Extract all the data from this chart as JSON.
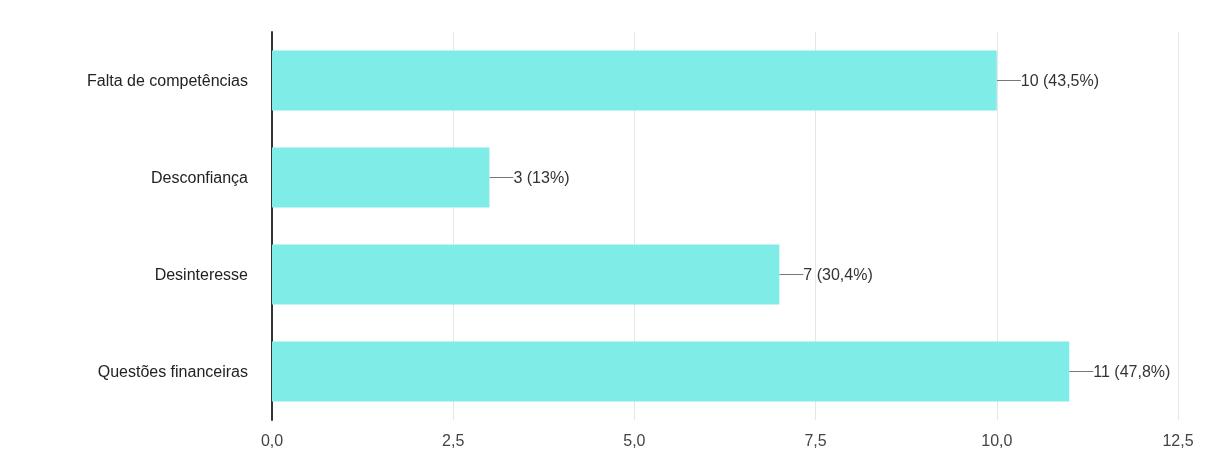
{
  "chart_data": {
    "type": "bar",
    "orientation": "horizontal",
    "categories": [
      "Falta de competências",
      "Desconfiança",
      "Desinteresse",
      "Questões financeiras"
    ],
    "values": [
      10,
      3,
      7,
      11
    ],
    "value_labels": [
      "10 (43,5%)",
      "3 (13%)",
      "7 (30,4%)",
      "11 (47,8%)"
    ],
    "color": "#80ece8",
    "xlim": [
      0,
      12.5
    ],
    "xticks": [
      {
        "value": 0,
        "label": "0,0"
      },
      {
        "value": 2.5,
        "label": "2,5"
      },
      {
        "value": 5,
        "label": "5,0"
      },
      {
        "value": 7.5,
        "label": "7,5"
      },
      {
        "value": 10,
        "label": "10,0"
      },
      {
        "value": 12.5,
        "label": "12,5"
      }
    ],
    "grid": "x"
  }
}
